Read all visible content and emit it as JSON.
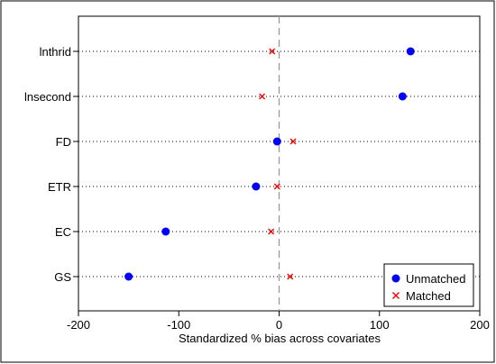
{
  "chart_data": {
    "type": "scatter",
    "title": "",
    "xlabel": "Standardized % bias across covariates",
    "ylabel": "",
    "xlim": [
      -200,
      200
    ],
    "xticks": [
      "-200",
      "-100",
      "0",
      "100",
      "200"
    ],
    "xtick_values": [
      -200,
      -100,
      0,
      100,
      200
    ],
    "grid": "dotted horizontal lines at each category",
    "reference_line": 0,
    "categories": [
      "lnthrid",
      "lnsecond",
      "FD",
      "ETR",
      "EC",
      "GS"
    ],
    "series": [
      {
        "name": "Unmatched",
        "marker": "circle",
        "color": "#0000ff",
        "values": [
          131,
          123,
          -2,
          -23,
          -113,
          -150
        ]
      },
      {
        "name": "Matched",
        "marker": "x",
        "color": "#ff0000",
        "values": [
          -7,
          -17,
          14,
          -2,
          -8,
          11
        ]
      }
    ],
    "legend_position": "bottom-right"
  }
}
